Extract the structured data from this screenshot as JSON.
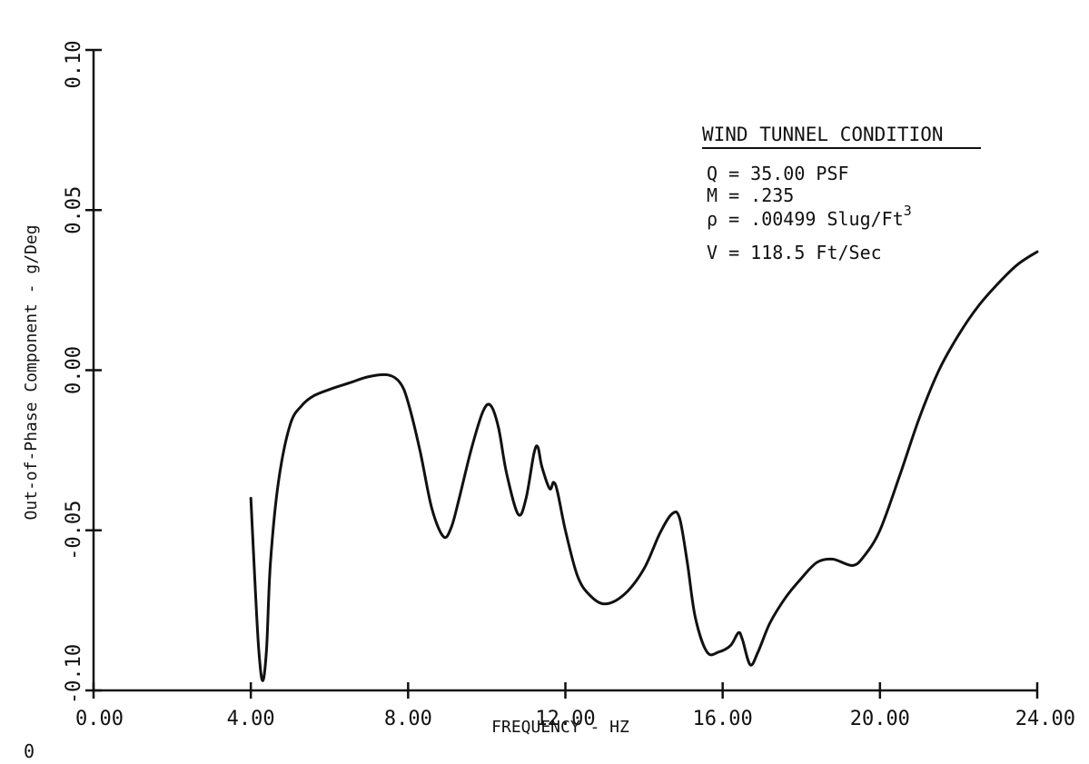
{
  "chart_data": {
    "type": "line",
    "title": "",
    "xlabel": "FREQUENCY - HZ",
    "ylabel": "Out-of-Phase Component - g/Deg",
    "xlim": [
      0,
      24
    ],
    "ylim": [
      -0.1,
      0.1
    ],
    "x_ticks": [
      "0.00",
      "4.00",
      "8.00",
      "12.00",
      "16.00",
      "20.00",
      "24.00"
    ],
    "x_tick_values": [
      0,
      4,
      8,
      12,
      16,
      20,
      24
    ],
    "y_ticks": [
      "-0.10",
      "-0.05",
      "0.00",
      "0.05",
      "0.10"
    ],
    "y_tick_values": [
      -0.1,
      -0.05,
      0,
      0.05,
      0.1
    ],
    "grid": false,
    "series": [
      {
        "x": [
          4.0,
          4.1,
          4.2,
          4.3,
          4.4,
          4.5,
          4.7,
          5.0,
          5.3,
          5.6,
          6.0,
          6.5,
          7.0,
          7.5,
          7.8,
          8.0,
          8.3,
          8.6,
          8.9,
          9.1,
          9.3,
          9.6,
          9.9,
          10.1,
          10.3,
          10.5,
          10.8,
          11.0,
          11.2,
          11.3,
          11.4,
          11.6,
          11.7,
          11.8,
          12.0,
          12.3,
          12.6,
          13.0,
          13.5,
          14.0,
          14.4,
          14.7,
          14.9,
          15.1,
          15.3,
          15.6,
          15.9,
          16.2,
          16.4,
          16.5,
          16.7,
          16.9,
          17.2,
          17.6,
          18.0,
          18.4,
          18.8,
          19.3,
          19.6,
          20.0,
          20.5,
          21.0,
          21.5,
          22.0,
          22.5,
          23.0,
          23.5,
          24.0
        ],
        "y": [
          -0.04,
          -0.065,
          -0.087,
          -0.097,
          -0.087,
          -0.06,
          -0.035,
          -0.017,
          -0.011,
          -0.008,
          -0.006,
          -0.004,
          -0.002,
          -0.0015,
          -0.004,
          -0.01,
          -0.025,
          -0.043,
          -0.052,
          -0.049,
          -0.04,
          -0.025,
          -0.013,
          -0.011,
          -0.018,
          -0.032,
          -0.045,
          -0.04,
          -0.026,
          -0.024,
          -0.03,
          -0.037,
          -0.035,
          -0.038,
          -0.05,
          -0.064,
          -0.07,
          -0.073,
          -0.07,
          -0.062,
          -0.051,
          -0.045,
          -0.046,
          -0.06,
          -0.077,
          -0.088,
          -0.088,
          -0.086,
          -0.082,
          -0.084,
          -0.092,
          -0.088,
          -0.079,
          -0.071,
          -0.065,
          -0.06,
          -0.059,
          -0.061,
          -0.058,
          -0.05,
          -0.033,
          -0.015,
          0.0,
          0.011,
          0.02,
          0.027,
          0.033,
          0.037
        ]
      }
    ]
  },
  "condition_box": {
    "title": "WIND TUNNEL CONDITION",
    "q": "Q = 35.00 PSF",
    "m": "M = .235",
    "rho_prefix": "ρ = .00499 Slug/Ft",
    "rho_exp": "3",
    "v": "V = 118.5 Ft/Sec"
  },
  "stray_mark": "0"
}
